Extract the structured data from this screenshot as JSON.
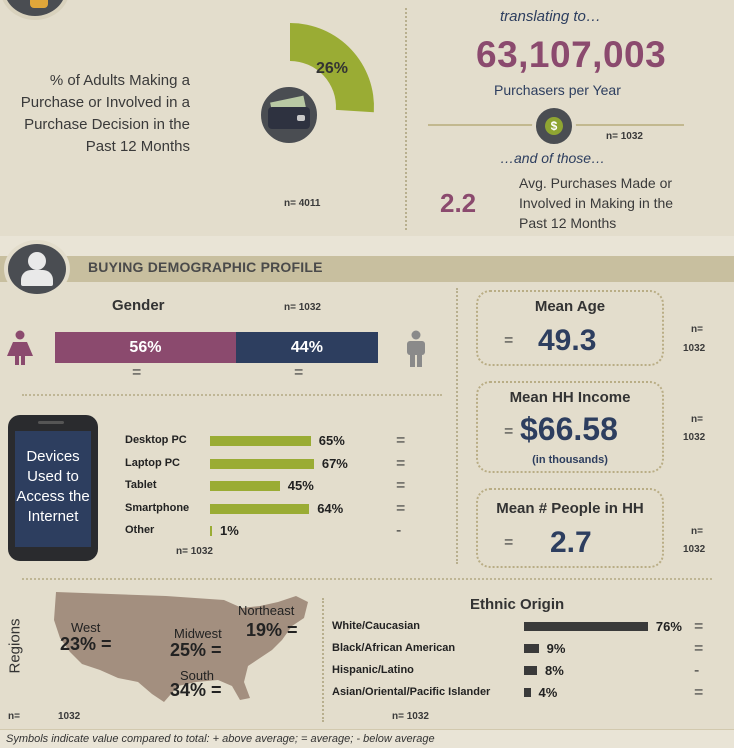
{
  "top": {
    "adults_label": "% of Adults Making a Purchase or Involved in a Purchase Decision in the Past 12 Months",
    "adults_pct": "26%",
    "adults_pct_value": 26,
    "adults_n": "n= 4011",
    "translating": "translating to…",
    "purchasers_number": "63,107,003",
    "purchasers_label": "Purchasers per Year",
    "purchasers_n": "n= 1032",
    "and_of_those": "…and of those…",
    "avg_value": "2.2",
    "avg_label": "Avg. Purchases Made or Involved in Making in the Past 12 Months"
  },
  "section": {
    "title": "BUYING DEMOGRAPHIC PROFILE"
  },
  "gender": {
    "title": "Gender",
    "n": "n= 1032",
    "female_pct": "56%",
    "female_value": 56,
    "male_pct": "44%",
    "male_value": 44,
    "female_symbol": "=",
    "male_symbol": "="
  },
  "devices": {
    "phone_label": "Devices Used to Access the Internet",
    "n": "n= 1032",
    "items": [
      {
        "label": "Desktop PC",
        "pct": "65%",
        "value": 65,
        "symbol": "="
      },
      {
        "label": "Laptop PC",
        "pct": "67%",
        "value": 67,
        "symbol": "="
      },
      {
        "label": "Tablet",
        "pct": "45%",
        "value": 45,
        "symbol": "="
      },
      {
        "label": "Smartphone",
        "pct": "64%",
        "value": 64,
        "symbol": "="
      },
      {
        "label": "Other",
        "pct": "1%",
        "value": 1,
        "symbol": "-"
      }
    ]
  },
  "stats": {
    "age": {
      "title": "Mean Age",
      "eq": "=",
      "value": "49.3",
      "n1": "n=",
      "n2": "1032"
    },
    "income": {
      "title": "Mean HH Income",
      "eq": "=",
      "value": "$66.58",
      "sub": "(in thousands)",
      "n1": "n=",
      "n2": "1032"
    },
    "people": {
      "title": "Mean # People in HH",
      "eq": "=",
      "value": "2.7",
      "n1": "n=",
      "n2": "1032"
    }
  },
  "regions": {
    "label": "Regions",
    "n1": "n=",
    "n2": "1032",
    "west": {
      "name": "West",
      "pct": "23%",
      "symbol": "="
    },
    "midwest": {
      "name": "Midwest",
      "pct": "25%",
      "symbol": "="
    },
    "northeast": {
      "name": "Northeast",
      "pct": "19%",
      "symbol": "="
    },
    "south": {
      "name": "South",
      "pct": "34%",
      "symbol": "="
    }
  },
  "ethnic": {
    "title": "Ethnic Origin",
    "n": "n= 1032",
    "items": [
      {
        "label": "White/Caucasian",
        "pct": "76%",
        "value": 76,
        "symbol": "="
      },
      {
        "label": "Black/African American",
        "pct": "9%",
        "value": 9,
        "symbol": "="
      },
      {
        "label": "Hispanic/Latino",
        "pct": "8%",
        "value": 8,
        "symbol": "-"
      },
      {
        "label": "Asian/Oriental/Pacific Islander",
        "pct": "4%",
        "value": 4,
        "symbol": "="
      }
    ]
  },
  "footer": {
    "text": "Symbols indicate value compared to total: + above average; = average; - below average"
  },
  "colors": {
    "purple": "#8b4a6e",
    "navy": "#2d3e5f",
    "olive": "#9aac34",
    "dark": "#3a3a3a"
  }
}
